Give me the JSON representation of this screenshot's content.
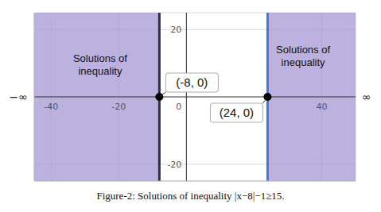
{
  "chart_data": {
    "type": "area",
    "title": "Figure-2: Solutions of inequality |x−8|−1≥15.",
    "xlim": [
      -45,
      50
    ],
    "ylim": [
      -25,
      25
    ],
    "xticks": [
      -40,
      -20,
      0,
      40
    ],
    "yticks": [
      -20,
      20
    ],
    "grid": true,
    "color": "#a597d4",
    "regions": [
      {
        "x": [
          -45,
          -8
        ],
        "color": "#2b2b55"
      },
      {
        "x": [
          24,
          50
        ],
        "color": "#3d7bd0"
      }
    ],
    "points": [
      {
        "x": -8,
        "y": 0,
        "label": "(-8, 0)"
      },
      {
        "x": 24,
        "y": 0,
        "label": "(24, 0)"
      }
    ],
    "annotations": [
      {
        "text": [
          "Solutions of",
          "inequality"
        ],
        "x": -25.5,
        "y": 9.5
      },
      {
        "text": [
          "Solutions of",
          "inequality"
        ],
        "x": 34.5,
        "y": 12
      }
    ],
    "x_end_labels": [
      "−∞",
      "∞"
    ]
  }
}
